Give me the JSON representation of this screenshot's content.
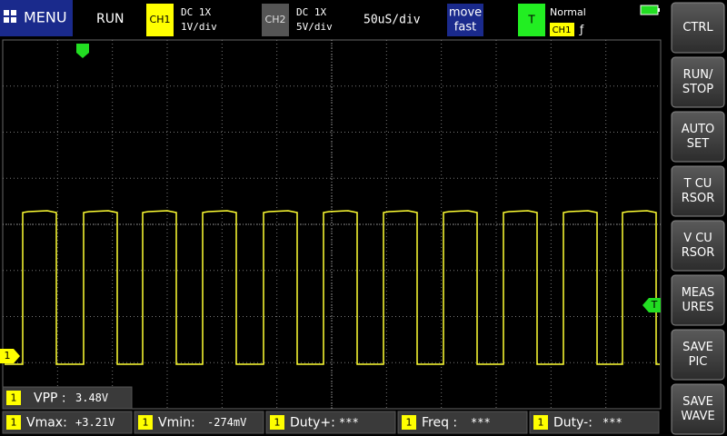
{
  "top_bar": {
    "menu": "MENU",
    "status": "RUN",
    "ch1": {
      "badge": "CH1",
      "coupling": "DC  1X",
      "scale": "1V/div"
    },
    "ch2": {
      "badge": "CH2",
      "coupling": "DC  1X",
      "scale": "5V/div"
    },
    "timebase": "50uS/div",
    "move": [
      "move",
      "fast"
    ],
    "trigger": {
      "badge": "T",
      "mode": "Normal",
      "source": "CH1",
      "edge": "ƒ"
    }
  },
  "side_buttons": [
    [
      "CTRL"
    ],
    [
      "RUN/",
      "STOP"
    ],
    [
      "AUTO",
      "SET"
    ],
    [
      "T CU",
      "RSOR"
    ],
    [
      "V CU",
      "RSOR"
    ],
    [
      "MEAS",
      "URES"
    ],
    [
      "SAVE",
      "PIC"
    ],
    [
      "SAVE",
      "WAVE"
    ]
  ],
  "markers": {
    "ch1": "1",
    "trigger": "T"
  },
  "measurements": [
    {
      "channel": "1",
      "label": "VPP :",
      "value": "3.48V"
    },
    {
      "channel": "1",
      "label": "Vmax:",
      "value": "+3.21V"
    },
    {
      "channel": "1",
      "label": "Vmin:",
      "value": "-274mV"
    },
    {
      "channel": "1",
      "label": "Duty+:",
      "value": "***"
    },
    {
      "channel": "1",
      "label": "Freq :",
      "value": "***"
    },
    {
      "channel": "1",
      "label": "Duty-:",
      "value": "***"
    }
  ]
}
